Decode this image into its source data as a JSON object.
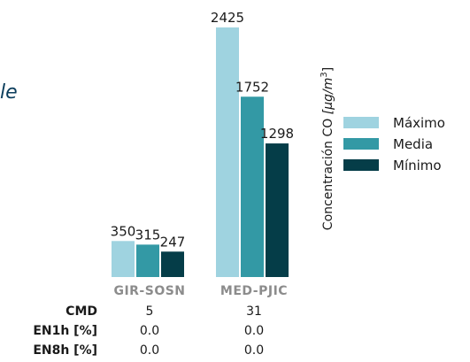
{
  "title_fragment": "le",
  "chart_data": {
    "type": "bar",
    "categories": [
      "GIR-SOSN",
      "MED-PJIC"
    ],
    "series": [
      {
        "name": "Máximo",
        "values": [
          350,
          2425
        ],
        "color": "#9fd3e0"
      },
      {
        "name": "Media",
        "values": [
          315,
          1752
        ],
        "color": "#3399a5"
      },
      {
        "name": "Mínimo",
        "values": [
          247,
          1298
        ],
        "color": "#053d48"
      }
    ],
    "ylabel_main": "Concentración CO ",
    "ylabel_unit": "[μg/m",
    "ylabel_exp": "3",
    "ylabel_close": "]",
    "ylim": [
      0,
      2425
    ],
    "legend_position": "right"
  },
  "table": {
    "rows": [
      {
        "label": "CMD",
        "values": [
          "5",
          "31"
        ]
      },
      {
        "label": "EN1h [%]",
        "values": [
          "0.0",
          "0.0"
        ]
      },
      {
        "label": "EN8h [%]",
        "values": [
          "0.0",
          "0.0"
        ]
      }
    ]
  }
}
